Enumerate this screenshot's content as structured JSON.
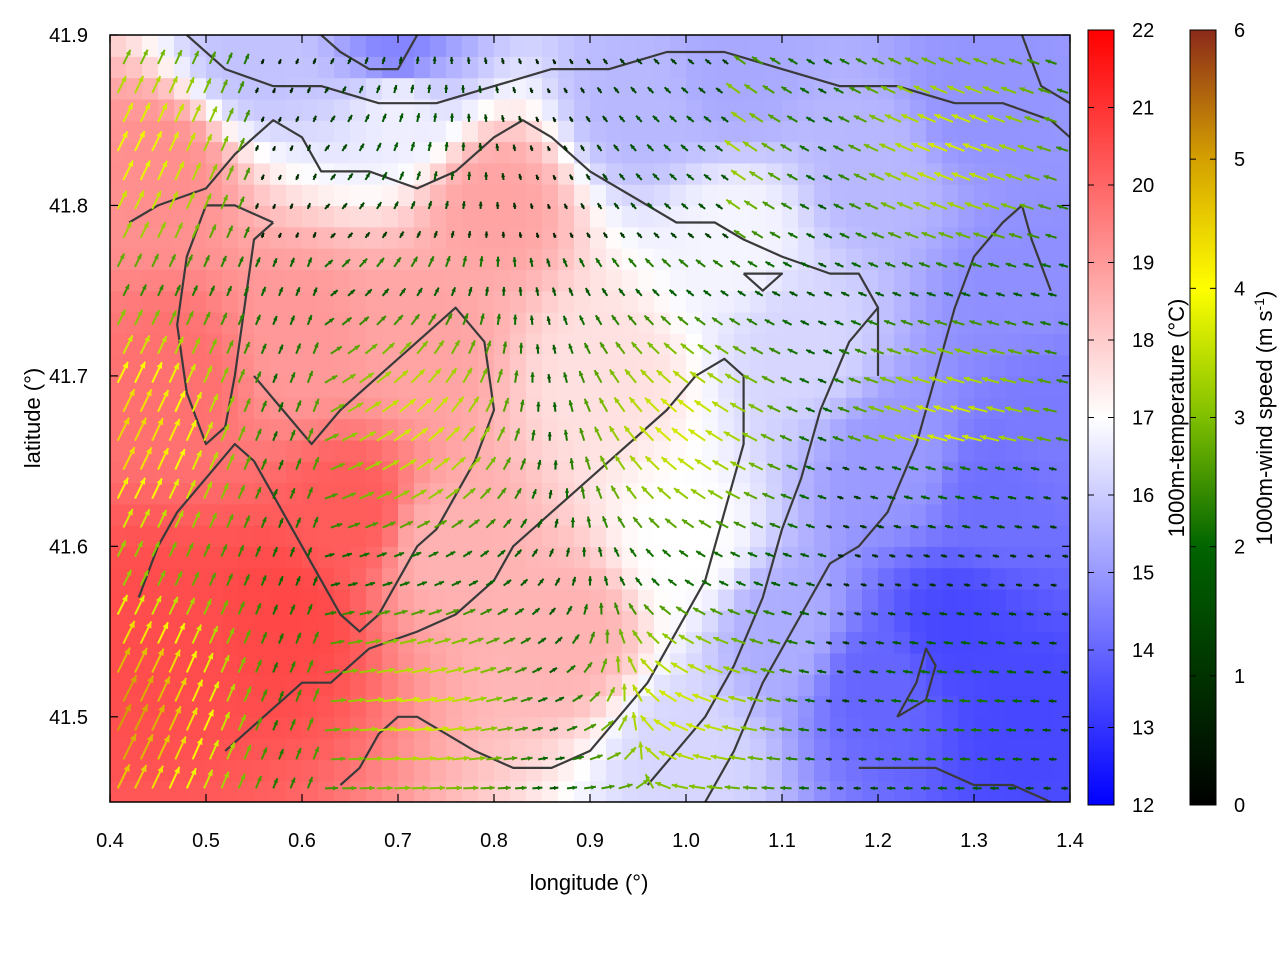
{
  "chart_data": {
    "type": "heatmap",
    "xlabel": "longitude (°)",
    "ylabel": "latitude (°)",
    "xlim": [
      0.4,
      1.4
    ],
    "ylim": [
      41.45,
      41.9
    ],
    "xticks": [
      "0.4",
      "0.5",
      "0.6",
      "0.7",
      "0.8",
      "0.9",
      "1.0",
      "1.1",
      "1.2",
      "1.3",
      "1.4"
    ],
    "yticks": [
      "41.5",
      "41.6",
      "41.7",
      "41.8",
      "41.9"
    ],
    "grid": false,
    "overlays": [
      "wind vectors",
      "coastline/terrain contours"
    ],
    "colorbars": [
      {
        "label": "1000m-temperature (°C)",
        "range": [
          12,
          22
        ],
        "ticks": [
          "12",
          "13",
          "14",
          "15",
          "16",
          "17",
          "18",
          "19",
          "20",
          "21",
          "22"
        ],
        "palette": [
          "#0000ff",
          "#ffffff",
          "#ff0000"
        ]
      },
      {
        "label_main": "1000m-wind speed (m s",
        "label_sup": "-1",
        "label_end": ")",
        "range": [
          0,
          6
        ],
        "ticks": [
          "0",
          "1",
          "2",
          "3",
          "4",
          "5",
          "6"
        ],
        "palette": [
          "#000000",
          "#006400",
          "#7fbf00",
          "#ffff00",
          "#d4a000",
          "#8b2a1a"
        ]
      }
    ],
    "temperature_anchors": [
      {
        "lon": 0.45,
        "lat": 41.55,
        "t": 20.5
      },
      {
        "lon": 0.58,
        "lat": 41.56,
        "t": 20.6
      },
      {
        "lon": 0.65,
        "lat": 41.62,
        "t": 20.2
      },
      {
        "lon": 0.47,
        "lat": 41.7,
        "t": 19.8
      },
      {
        "lon": 0.45,
        "lat": 41.82,
        "t": 19.2
      },
      {
        "lon": 0.6,
        "lat": 41.72,
        "t": 19.0
      },
      {
        "lon": 0.72,
        "lat": 41.72,
        "t": 18.8
      },
      {
        "lon": 0.8,
        "lat": 41.8,
        "t": 18.8
      },
      {
        "lon": 0.75,
        "lat": 41.6,
        "t": 18.5
      },
      {
        "lon": 0.88,
        "lat": 41.55,
        "t": 18.5
      },
      {
        "lon": 0.92,
        "lat": 41.7,
        "t": 17.6
      },
      {
        "lon": 0.7,
        "lat": 41.86,
        "t": 16.7
      },
      {
        "lon": 0.7,
        "lat": 41.89,
        "t": 14.6
      },
      {
        "lon": 0.55,
        "lat": 41.89,
        "t": 15.8
      },
      {
        "lon": 0.95,
        "lat": 41.86,
        "t": 15.6
      },
      {
        "lon": 1.05,
        "lat": 41.88,
        "t": 15.3
      },
      {
        "lon": 1.05,
        "lat": 41.78,
        "t": 16.8
      },
      {
        "lon": 1.0,
        "lat": 41.6,
        "t": 17.0
      },
      {
        "lon": 1.0,
        "lat": 41.48,
        "t": 16.2
      },
      {
        "lon": 1.1,
        "lat": 41.55,
        "t": 15.4
      },
      {
        "lon": 1.12,
        "lat": 41.72,
        "t": 16.2
      },
      {
        "lon": 1.2,
        "lat": 41.82,
        "t": 15.6
      },
      {
        "lon": 1.22,
        "lat": 41.65,
        "t": 15.0
      },
      {
        "lon": 1.2,
        "lat": 41.52,
        "t": 14.0
      },
      {
        "lon": 1.28,
        "lat": 41.55,
        "t": 13.4
      },
      {
        "lon": 1.35,
        "lat": 41.5,
        "t": 13.4
      },
      {
        "lon": 1.32,
        "lat": 41.63,
        "t": 14.2
      },
      {
        "lon": 1.35,
        "lat": 41.75,
        "t": 14.8
      },
      {
        "lon": 1.3,
        "lat": 41.86,
        "t": 14.9
      },
      {
        "lon": 1.38,
        "lat": 41.68,
        "t": 14.4
      }
    ],
    "contours": [
      [
        [
          0.42,
          41.79
        ],
        [
          0.45,
          41.8
        ],
        [
          0.5,
          41.81
        ],
        [
          0.53,
          41.83
        ],
        [
          0.57,
          41.85
        ],
        [
          0.6,
          41.84
        ],
        [
          0.62,
          41.82
        ],
        [
          0.67,
          41.82
        ],
        [
          0.72,
          41.81
        ],
        [
          0.76,
          41.82
        ],
        [
          0.8,
          41.84
        ],
        [
          0.83,
          41.85
        ],
        [
          0.86,
          41.84
        ],
        [
          0.9,
          41.82
        ],
        [
          0.93,
          41.81
        ],
        [
          0.96,
          41.8
        ],
        [
          0.99,
          41.79
        ],
        [
          1.03,
          41.79
        ],
        [
          1.06,
          41.78
        ],
        [
          1.1,
          41.77
        ],
        [
          1.15,
          41.76
        ],
        [
          1.18,
          41.76
        ],
        [
          1.2,
          41.74
        ],
        [
          1.2,
          41.7
        ]
      ],
      [
        [
          0.72,
          41.9
        ],
        [
          0.7,
          41.88
        ],
        [
          0.67,
          41.88
        ],
        [
          0.64,
          41.89
        ],
        [
          0.62,
          41.9
        ]
      ],
      [
        [
          0.48,
          41.9
        ],
        [
          0.52,
          41.88
        ],
        [
          0.57,
          41.87
        ],
        [
          0.62,
          41.87
        ],
        [
          0.68,
          41.86
        ],
        [
          0.74,
          41.86
        ],
        [
          0.8,
          41.87
        ],
        [
          0.86,
          41.88
        ],
        [
          0.92,
          41.88
        ],
        [
          0.98,
          41.89
        ],
        [
          1.04,
          41.89
        ],
        [
          1.1,
          41.88
        ],
        [
          1.16,
          41.87
        ],
        [
          1.22,
          41.87
        ],
        [
          1.28,
          41.86
        ],
        [
          1.33,
          41.86
        ],
        [
          1.38,
          41.85
        ],
        [
          1.4,
          41.84
        ]
      ],
      [
        [
          0.57,
          41.79
        ],
        [
          0.55,
          41.78
        ],
        [
          0.54,
          41.74
        ],
        [
          0.53,
          41.7
        ],
        [
          0.52,
          41.67
        ],
        [
          0.5,
          41.66
        ],
        [
          0.48,
          41.69
        ],
        [
          0.47,
          41.73
        ],
        [
          0.48,
          41.77
        ],
        [
          0.5,
          41.8
        ],
        [
          0.53,
          41.8
        ],
        [
          0.57,
          41.79
        ]
      ],
      [
        [
          0.55,
          41.7
        ],
        [
          0.58,
          41.68
        ],
        [
          0.61,
          41.66
        ],
        [
          0.64,
          41.68
        ],
        [
          0.68,
          41.7
        ],
        [
          0.72,
          41.72
        ],
        [
          0.76,
          41.74
        ],
        [
          0.79,
          41.72
        ],
        [
          0.8,
          41.68
        ],
        [
          0.78,
          41.65
        ],
        [
          0.76,
          41.63
        ],
        [
          0.74,
          41.61
        ],
        [
          0.72,
          41.6
        ],
        [
          0.7,
          41.58
        ],
        [
          0.68,
          41.56
        ],
        [
          0.66,
          41.55
        ],
        [
          0.64,
          41.56
        ],
        [
          0.62,
          41.58
        ],
        [
          0.6,
          41.6
        ],
        [
          0.58,
          41.62
        ],
        [
          0.55,
          41.65
        ],
        [
          0.53,
          41.66
        ],
        [
          0.5,
          41.64
        ],
        [
          0.47,
          41.62
        ],
        [
          0.45,
          41.6
        ],
        [
          0.43,
          41.57
        ]
      ],
      [
        [
          0.52,
          41.48
        ],
        [
          0.56,
          41.5
        ],
        [
          0.6,
          41.52
        ],
        [
          0.63,
          41.52
        ],
        [
          0.67,
          41.54
        ],
        [
          0.72,
          41.55
        ],
        [
          0.76,
          41.56
        ],
        [
          0.8,
          41.58
        ],
        [
          0.82,
          41.6
        ],
        [
          0.86,
          41.62
        ],
        [
          0.9,
          41.64
        ],
        [
          0.94,
          41.66
        ],
        [
          0.98,
          41.68
        ],
        [
          1.01,
          41.7
        ],
        [
          1.04,
          41.71
        ],
        [
          1.06,
          41.7
        ],
        [
          1.06,
          41.66
        ],
        [
          1.04,
          41.62
        ],
        [
          1.02,
          41.58
        ],
        [
          0.99,
          41.55
        ],
        [
          0.96,
          41.52
        ],
        [
          0.93,
          41.5
        ],
        [
          0.9,
          41.48
        ],
        [
          0.86,
          41.47
        ],
        [
          0.82,
          41.47
        ],
        [
          0.78,
          41.48
        ],
        [
          0.75,
          41.49
        ],
        [
          0.72,
          41.5
        ],
        [
          0.7,
          41.5
        ],
        [
          0.68,
          41.49
        ],
        [
          0.66,
          41.47
        ],
        [
          0.64,
          41.46
        ]
      ],
      [
        [
          0.96,
          41.46
        ],
        [
          0.99,
          41.48
        ],
        [
          1.02,
          41.5
        ],
        [
          1.05,
          41.53
        ],
        [
          1.08,
          41.57
        ],
        [
          1.1,
          41.61
        ],
        [
          1.12,
          41.64
        ],
        [
          1.14,
          41.68
        ],
        [
          1.17,
          41.72
        ],
        [
          1.2,
          41.74
        ]
      ],
      [
        [
          1.02,
          41.45
        ],
        [
          1.05,
          41.48
        ],
        [
          1.08,
          41.52
        ],
        [
          1.12,
          41.56
        ],
        [
          1.15,
          41.59
        ],
        [
          1.18,
          41.6
        ],
        [
          1.21,
          41.62
        ],
        [
          1.24,
          41.66
        ],
        [
          1.26,
          41.7
        ],
        [
          1.28,
          41.74
        ],
        [
          1.3,
          41.77
        ],
        [
          1.33,
          41.79
        ],
        [
          1.35,
          41.8
        ],
        [
          1.36,
          41.78
        ],
        [
          1.38,
          41.75
        ]
      ],
      [
        [
          1.22,
          41.5
        ],
        [
          1.25,
          41.51
        ],
        [
          1.26,
          41.53
        ],
        [
          1.25,
          41.54
        ],
        [
          1.24,
          41.52
        ],
        [
          1.22,
          41.5
        ]
      ],
      [
        [
          1.06,
          41.76
        ],
        [
          1.08,
          41.76
        ],
        [
          1.1,
          41.76
        ],
        [
          1.08,
          41.75
        ],
        [
          1.06,
          41.76
        ]
      ],
      [
        [
          1.18,
          41.47
        ],
        [
          1.22,
          41.47
        ],
        [
          1.26,
          41.47
        ],
        [
          1.3,
          41.46
        ],
        [
          1.34,
          41.46
        ],
        [
          1.38,
          41.45
        ]
      ],
      [
        [
          1.35,
          41.9
        ],
        [
          1.37,
          41.87
        ],
        [
          1.4,
          41.86
        ]
      ]
    ]
  }
}
